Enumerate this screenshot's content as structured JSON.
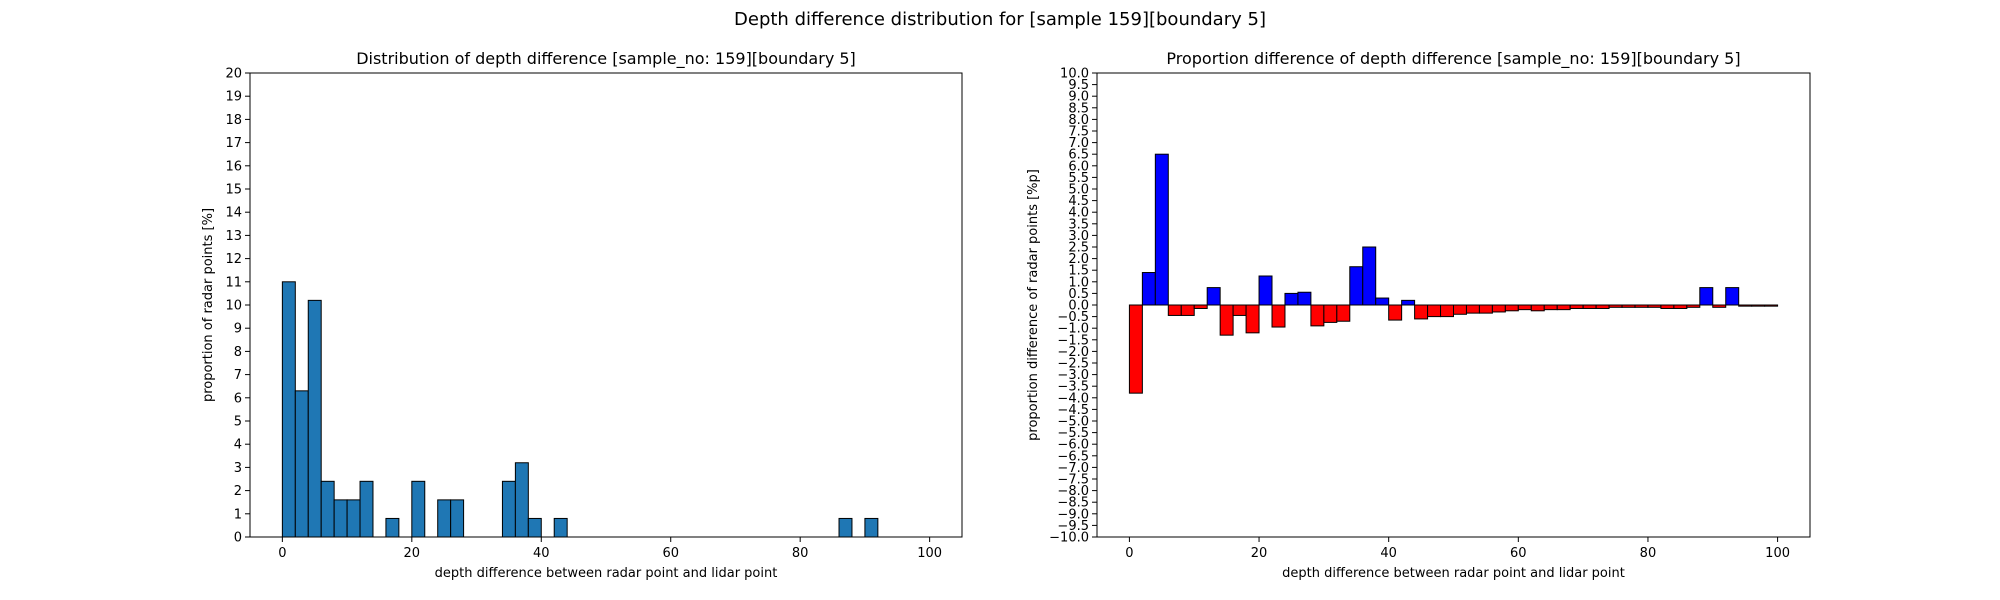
{
  "figure": {
    "title": "Depth difference distribution for [sample 159][boundary 5]"
  },
  "chart_data": [
    {
      "type": "bar",
      "title": "Distribution of depth difference [sample_no: 159][boundary 5]",
      "xlabel": "depth difference between radar point and lidar point",
      "ylabel": "proportion of radar points [%]",
      "xlim": [
        -5,
        105
      ],
      "ylim": [
        0,
        20
      ],
      "xticks": [
        0,
        20,
        40,
        60,
        80,
        100
      ],
      "yticks": [
        0,
        1,
        2,
        3,
        4,
        5,
        6,
        7,
        8,
        9,
        10,
        11,
        12,
        13,
        14,
        15,
        16,
        17,
        18,
        19,
        20
      ],
      "bin_width": 2,
      "bin_starts": [
        0,
        2,
        4,
        6,
        8,
        10,
        12,
        14,
        16,
        18,
        20,
        22,
        24,
        26,
        28,
        30,
        32,
        34,
        36,
        38,
        40,
        42,
        44,
        46,
        48,
        50,
        52,
        54,
        56,
        58,
        60,
        62,
        64,
        66,
        68,
        70,
        72,
        74,
        76,
        78,
        80,
        82,
        84,
        86,
        88,
        90,
        92,
        94,
        96,
        98
      ],
      "values": [
        11.0,
        6.3,
        10.2,
        2.4,
        1.6,
        1.6,
        2.4,
        0,
        0.8,
        0,
        2.4,
        0,
        1.6,
        1.6,
        0,
        0,
        0,
        2.4,
        3.2,
        0.8,
        0,
        0.8,
        0,
        0,
        0,
        0,
        0,
        0,
        0,
        0,
        0,
        0,
        0,
        0,
        0,
        0,
        0,
        0,
        0,
        0,
        0,
        0,
        0,
        0.8,
        0,
        0.8,
        0,
        0,
        0,
        0
      ],
      "color": "#1f77b4",
      "edgecolor": "#000000"
    },
    {
      "type": "bar",
      "title": "Proportion difference of depth difference [sample_no: 159][boundary 5]",
      "xlabel": "depth difference between radar point and lidar point",
      "ylabel": "proportion difference of radar points [%p]",
      "xlim": [
        -5,
        105
      ],
      "ylim": [
        -10,
        10
      ],
      "xticks": [
        0,
        20,
        40,
        60,
        80,
        100
      ],
      "ytick_labels": [
        "−10.0",
        "−9.5",
        "−9.0",
        "−8.5",
        "−8.0",
        "−7.5",
        "−7.0",
        "−6.5",
        "−6.0",
        "−5.5",
        "−5.0",
        "−4.5",
        "−4.0",
        "−3.5",
        "−3.0",
        "−2.5",
        "−2.0",
        "−1.5",
        "−1.0",
        "−0.5",
        "0.0",
        "0.5",
        "1.0",
        "1.5",
        "2.0",
        "2.5",
        "3.0",
        "3.5",
        "4.0",
        "4.5",
        "5.0",
        "5.5",
        "6.0",
        "6.5",
        "7.0",
        "7.5",
        "8.0",
        "8.5",
        "9.0",
        "9.5",
        "10.0"
      ],
      "bin_width": 2,
      "bin_starts": [
        0,
        2,
        4,
        6,
        8,
        10,
        12,
        14,
        16,
        18,
        20,
        22,
        24,
        26,
        28,
        30,
        32,
        34,
        36,
        38,
        40,
        42,
        44,
        46,
        48,
        50,
        52,
        54,
        56,
        58,
        60,
        62,
        64,
        66,
        68,
        70,
        72,
        74,
        76,
        78,
        80,
        82,
        84,
        86,
        88,
        90,
        92,
        94,
        96,
        98
      ],
      "values": [
        -3.8,
        1.4,
        6.5,
        -0.45,
        -0.45,
        -0.15,
        0.75,
        -1.3,
        -0.45,
        -1.2,
        1.25,
        -0.95,
        0.5,
        0.55,
        -0.9,
        -0.75,
        -0.7,
        1.65,
        2.5,
        0.3,
        -0.65,
        0.2,
        -0.6,
        -0.5,
        -0.5,
        -0.4,
        -0.35,
        -0.35,
        -0.3,
        -0.25,
        -0.2,
        -0.25,
        -0.2,
        -0.2,
        -0.15,
        -0.15,
        -0.15,
        -0.1,
        -0.1,
        -0.1,
        -0.1,
        -0.15,
        -0.15,
        -0.1,
        0.75,
        -0.1,
        0.75,
        -0.05,
        -0.05,
        -0.05
      ],
      "positive_color": "#0000ff",
      "negative_color": "#ff0000",
      "edgecolor": "#000000"
    }
  ]
}
